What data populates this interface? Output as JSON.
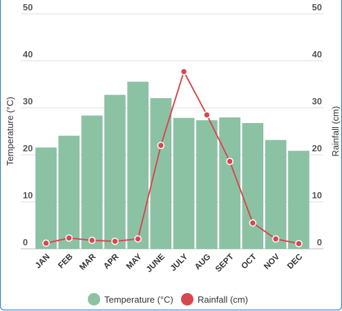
{
  "chart_data": {
    "type": "bar",
    "categories": [
      "JAN",
      "FEB",
      "MAR",
      "APR",
      "MAY",
      "JUNE",
      "JULY",
      "AUG",
      "SEPT",
      "OCT",
      "NOV",
      "DEC"
    ],
    "series": [
      {
        "name": "Temperature (°C)",
        "type": "bar",
        "axis": "left",
        "color": "#8cc2a4",
        "values": [
          21.5,
          24,
          28.3,
          32.7,
          35.5,
          32,
          27.8,
          27.3,
          27.9,
          26.7,
          23.1,
          20.8
        ]
      },
      {
        "name": "Rainfall (cm)",
        "type": "line",
        "axis": "right",
        "color": "#d7474f",
        "values": [
          1.2,
          2.3,
          1.8,
          1.6,
          2.1,
          22,
          37.7,
          28.5,
          18.6,
          5.5,
          2.1,
          1.1
        ]
      }
    ],
    "ylabel": "Temperature (°C)",
    "y2label": "Rainfall (cm)",
    "ylim": [
      0,
      50
    ],
    "y2lim": [
      0,
      50
    ],
    "yticks": [
      0,
      10,
      20,
      30,
      40,
      50
    ],
    "grid": true,
    "legend": "bottom"
  }
}
